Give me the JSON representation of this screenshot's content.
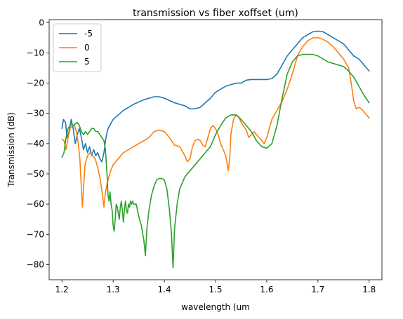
{
  "chart_data": {
    "type": "line",
    "title": "transmission vs fiber xoffset (um)",
    "xlabel": "wavelength (um",
    "ylabel": "Transmission (dB)",
    "xlim": [
      1.175,
      1.825
    ],
    "ylim": [
      -85,
      1
    ],
    "xticks": [
      1.2,
      1.3,
      1.4,
      1.5,
      1.6,
      1.7,
      1.8
    ],
    "yticks": [
      0,
      -10,
      -20,
      -30,
      -40,
      -50,
      -60,
      -70,
      -80
    ],
    "xtick_labels": [
      "1.2",
      "1.3",
      "1.4",
      "1.5",
      "1.6",
      "1.7",
      "1.8"
    ],
    "ytick_labels": [
      "0",
      "−10",
      "−20",
      "−30",
      "−40",
      "−50",
      "−60",
      "−70",
      "−80"
    ],
    "grid": false,
    "legend_position": "top-left",
    "series": [
      {
        "name": "-5",
        "color": "#1f77b4",
        "points": [
          [
            1.2,
            -35
          ],
          [
            1.203,
            -32
          ],
          [
            1.207,
            -33
          ],
          [
            1.21,
            -38
          ],
          [
            1.214,
            -36
          ],
          [
            1.218,
            -32
          ],
          [
            1.222,
            -35
          ],
          [
            1.226,
            -40
          ],
          [
            1.23,
            -37
          ],
          [
            1.234,
            -35
          ],
          [
            1.238,
            -38
          ],
          [
            1.242,
            -42
          ],
          [
            1.246,
            -40
          ],
          [
            1.25,
            -43
          ],
          [
            1.254,
            -41
          ],
          [
            1.258,
            -44
          ],
          [
            1.262,
            -42
          ],
          [
            1.266,
            -44
          ],
          [
            1.27,
            -43
          ],
          [
            1.274,
            -45
          ],
          [
            1.278,
            -46
          ],
          [
            1.282,
            -43
          ],
          [
            1.286,
            -38
          ],
          [
            1.29,
            -35
          ],
          [
            1.3,
            -32
          ],
          [
            1.32,
            -29
          ],
          [
            1.34,
            -27
          ],
          [
            1.36,
            -25.5
          ],
          [
            1.38,
            -24.5
          ],
          [
            1.39,
            -24.5
          ],
          [
            1.4,
            -25
          ],
          [
            1.42,
            -26.5
          ],
          [
            1.44,
            -27.5
          ],
          [
            1.45,
            -28.5
          ],
          [
            1.46,
            -28.5
          ],
          [
            1.47,
            -28
          ],
          [
            1.48,
            -26.5
          ],
          [
            1.49,
            -25
          ],
          [
            1.5,
            -23
          ],
          [
            1.51,
            -22
          ],
          [
            1.52,
            -21
          ],
          [
            1.53,
            -20.5
          ],
          [
            1.54,
            -20
          ],
          [
            1.55,
            -20
          ],
          [
            1.56,
            -19
          ],
          [
            1.57,
            -18.8
          ],
          [
            1.58,
            -18.8
          ],
          [
            1.59,
            -18.8
          ],
          [
            1.6,
            -18.8
          ],
          [
            1.61,
            -18.5
          ],
          [
            1.62,
            -17
          ],
          [
            1.63,
            -14
          ],
          [
            1.64,
            -11
          ],
          [
            1.65,
            -9
          ],
          [
            1.66,
            -7
          ],
          [
            1.67,
            -5
          ],
          [
            1.68,
            -4
          ],
          [
            1.69,
            -3
          ],
          [
            1.7,
            -2.8
          ],
          [
            1.71,
            -3
          ],
          [
            1.72,
            -4
          ],
          [
            1.73,
            -5
          ],
          [
            1.74,
            -6
          ],
          [
            1.75,
            -7
          ],
          [
            1.76,
            -9
          ],
          [
            1.77,
            -11
          ],
          [
            1.78,
            -12
          ],
          [
            1.79,
            -14
          ],
          [
            1.8,
            -16
          ]
        ]
      },
      {
        "name": "0",
        "color": "#ff7f0e",
        "points": [
          [
            1.2,
            -38.5
          ],
          [
            1.204,
            -39
          ],
          [
            1.208,
            -42
          ],
          [
            1.212,
            -38
          ],
          [
            1.216,
            -35
          ],
          [
            1.22,
            -34
          ],
          [
            1.224,
            -34
          ],
          [
            1.228,
            -36
          ],
          [
            1.232,
            -40
          ],
          [
            1.235,
            -45
          ],
          [
            1.238,
            -55
          ],
          [
            1.24,
            -61
          ],
          [
            1.242,
            -55
          ],
          [
            1.245,
            -47
          ],
          [
            1.25,
            -44
          ],
          [
            1.255,
            -43
          ],
          [
            1.26,
            -44
          ],
          [
            1.265,
            -45
          ],
          [
            1.27,
            -48
          ],
          [
            1.275,
            -52
          ],
          [
            1.28,
            -58
          ],
          [
            1.282,
            -61
          ],
          [
            1.285,
            -56
          ],
          [
            1.29,
            -52
          ],
          [
            1.295,
            -49
          ],
          [
            1.3,
            -47
          ],
          [
            1.31,
            -45
          ],
          [
            1.32,
            -43
          ],
          [
            1.34,
            -41
          ],
          [
            1.36,
            -39
          ],
          [
            1.37,
            -38
          ],
          [
            1.38,
            -36
          ],
          [
            1.39,
            -35.5
          ],
          [
            1.4,
            -36
          ],
          [
            1.41,
            -38
          ],
          [
            1.42,
            -40.5
          ],
          [
            1.43,
            -41
          ],
          [
            1.44,
            -44
          ],
          [
            1.445,
            -46
          ],
          [
            1.45,
            -45
          ],
          [
            1.455,
            -41
          ],
          [
            1.46,
            -39
          ],
          [
            1.465,
            -38.5
          ],
          [
            1.47,
            -39
          ],
          [
            1.475,
            -40.5
          ],
          [
            1.48,
            -41
          ],
          [
            1.485,
            -38
          ],
          [
            1.49,
            -35
          ],
          [
            1.495,
            -34
          ],
          [
            1.5,
            -35
          ],
          [
            1.505,
            -37
          ],
          [
            1.51,
            -40
          ],
          [
            1.515,
            -42
          ],
          [
            1.52,
            -44
          ],
          [
            1.525,
            -49
          ],
          [
            1.528,
            -44
          ],
          [
            1.53,
            -37
          ],
          [
            1.535,
            -32
          ],
          [
            1.54,
            -30.5
          ],
          [
            1.545,
            -31
          ],
          [
            1.55,
            -33
          ],
          [
            1.56,
            -35.5
          ],
          [
            1.565,
            -38
          ],
          [
            1.57,
            -37
          ],
          [
            1.575,
            -36
          ],
          [
            1.58,
            -37
          ],
          [
            1.59,
            -39
          ],
          [
            1.595,
            -40
          ],
          [
            1.6,
            -38
          ],
          [
            1.61,
            -32
          ],
          [
            1.62,
            -29
          ],
          [
            1.63,
            -26
          ],
          [
            1.64,
            -22
          ],
          [
            1.65,
            -17
          ],
          [
            1.66,
            -11
          ],
          [
            1.67,
            -8
          ],
          [
            1.68,
            -6
          ],
          [
            1.69,
            -5
          ],
          [
            1.7,
            -5
          ],
          [
            1.71,
            -5.5
          ],
          [
            1.72,
            -6.5
          ],
          [
            1.73,
            -8
          ],
          [
            1.74,
            -10
          ],
          [
            1.75,
            -12
          ],
          [
            1.76,
            -15
          ],
          [
            1.765,
            -20
          ],
          [
            1.77,
            -26
          ],
          [
            1.775,
            -28.5
          ],
          [
            1.78,
            -28
          ],
          [
            1.785,
            -28.5
          ],
          [
            1.79,
            -29.5
          ],
          [
            1.8,
            -31.5
          ]
        ]
      },
      {
        "name": "5",
        "color": "#2ca02c",
        "points": [
          [
            1.2,
            -44.5
          ],
          [
            1.204,
            -43
          ],
          [
            1.208,
            -38
          ],
          [
            1.212,
            -35
          ],
          [
            1.218,
            -33.5
          ],
          [
            1.222,
            -34
          ],
          [
            1.226,
            -33.5
          ],
          [
            1.23,
            -33
          ],
          [
            1.234,
            -34
          ],
          [
            1.238,
            -36
          ],
          [
            1.242,
            -37
          ],
          [
            1.246,
            -36
          ],
          [
            1.25,
            -37
          ],
          [
            1.254,
            -36
          ],
          [
            1.258,
            -35
          ],
          [
            1.262,
            -35
          ],
          [
            1.266,
            -36
          ],
          [
            1.27,
            -36
          ],
          [
            1.274,
            -37
          ],
          [
            1.278,
            -38
          ],
          [
            1.282,
            -39
          ],
          [
            1.285,
            -42
          ],
          [
            1.288,
            -50
          ],
          [
            1.29,
            -57
          ],
          [
            1.292,
            -59
          ],
          [
            1.294,
            -56
          ],
          [
            1.296,
            -60
          ],
          [
            1.298,
            -62
          ],
          [
            1.3,
            -67
          ],
          [
            1.302,
            -69
          ],
          [
            1.304,
            -65
          ],
          [
            1.306,
            -60
          ],
          [
            1.308,
            -61
          ],
          [
            1.31,
            -63
          ],
          [
            1.312,
            -65
          ],
          [
            1.314,
            -61
          ],
          [
            1.316,
            -59
          ],
          [
            1.318,
            -62
          ],
          [
            1.32,
            -66
          ],
          [
            1.322,
            -62
          ],
          [
            1.324,
            -59
          ],
          [
            1.326,
            -62
          ],
          [
            1.328,
            -63
          ],
          [
            1.33,
            -60
          ],
          [
            1.332,
            -61
          ],
          [
            1.334,
            -59
          ],
          [
            1.336,
            -60
          ],
          [
            1.338,
            -59
          ],
          [
            1.34,
            -60
          ],
          [
            1.345,
            -60
          ],
          [
            1.35,
            -64
          ],
          [
            1.355,
            -67
          ],
          [
            1.36,
            -72
          ],
          [
            1.363,
            -77
          ],
          [
            1.366,
            -68
          ],
          [
            1.37,
            -62
          ],
          [
            1.375,
            -57
          ],
          [
            1.38,
            -54
          ],
          [
            1.385,
            -52
          ],
          [
            1.39,
            -51.5
          ],
          [
            1.395,
            -51.5
          ],
          [
            1.4,
            -52
          ],
          [
            1.405,
            -55
          ],
          [
            1.41,
            -62
          ],
          [
            1.414,
            -70
          ],
          [
            1.417,
            -81
          ],
          [
            1.42,
            -68
          ],
          [
            1.425,
            -60
          ],
          [
            1.43,
            -55
          ],
          [
            1.44,
            -51
          ],
          [
            1.45,
            -49
          ],
          [
            1.46,
            -47
          ],
          [
            1.47,
            -45
          ],
          [
            1.48,
            -43
          ],
          [
            1.49,
            -41
          ],
          [
            1.5,
            -37
          ],
          [
            1.51,
            -34
          ],
          [
            1.52,
            -31.5
          ],
          [
            1.53,
            -30.5
          ],
          [
            1.54,
            -30.5
          ],
          [
            1.55,
            -32
          ],
          [
            1.56,
            -34
          ],
          [
            1.57,
            -36
          ],
          [
            1.58,
            -39
          ],
          [
            1.59,
            -41
          ],
          [
            1.6,
            -41.5
          ],
          [
            1.61,
            -40
          ],
          [
            1.62,
            -34
          ],
          [
            1.63,
            -25
          ],
          [
            1.64,
            -17
          ],
          [
            1.65,
            -13
          ],
          [
            1.66,
            -11
          ],
          [
            1.67,
            -10.5
          ],
          [
            1.68,
            -10.5
          ],
          [
            1.69,
            -10.5
          ],
          [
            1.7,
            -11
          ],
          [
            1.71,
            -12
          ],
          [
            1.72,
            -13
          ],
          [
            1.73,
            -13.5
          ],
          [
            1.74,
            -14
          ],
          [
            1.75,
            -14.5
          ],
          [
            1.76,
            -16
          ],
          [
            1.77,
            -18
          ],
          [
            1.78,
            -21
          ],
          [
            1.79,
            -24
          ],
          [
            1.8,
            -26.5
          ]
        ]
      }
    ]
  }
}
